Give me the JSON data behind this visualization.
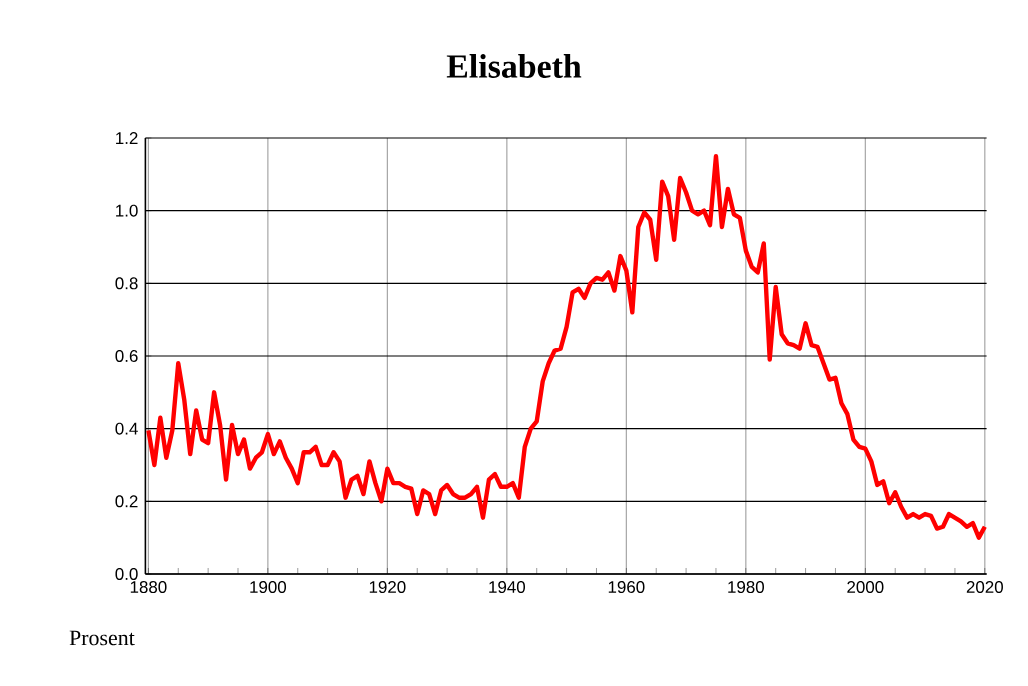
{
  "chart_data": {
    "type": "line",
    "title": "Elisabeth",
    "ylabel": "Prosent",
    "x": [
      1880,
      1881,
      1882,
      1883,
      1884,
      1885,
      1886,
      1887,
      1888,
      1889,
      1890,
      1891,
      1892,
      1893,
      1894,
      1895,
      1896,
      1897,
      1898,
      1899,
      1900,
      1901,
      1902,
      1903,
      1904,
      1905,
      1906,
      1907,
      1908,
      1909,
      1910,
      1911,
      1912,
      1913,
      1914,
      1915,
      1916,
      1917,
      1918,
      1919,
      1920,
      1921,
      1922,
      1923,
      1924,
      1925,
      1926,
      1927,
      1928,
      1929,
      1930,
      1931,
      1932,
      1933,
      1934,
      1935,
      1936,
      1937,
      1938,
      1939,
      1940,
      1941,
      1942,
      1943,
      1944,
      1945,
      1946,
      1947,
      1948,
      1949,
      1950,
      1951,
      1952,
      1953,
      1954,
      1955,
      1956,
      1957,
      1958,
      1959,
      1960,
      1961,
      1962,
      1963,
      1964,
      1965,
      1966,
      1967,
      1968,
      1969,
      1970,
      1971,
      1972,
      1973,
      1974,
      1975,
      1976,
      1977,
      1978,
      1979,
      1980,
      1981,
      1982,
      1983,
      1984,
      1985,
      1986,
      1987,
      1988,
      1989,
      1990,
      1991,
      1992,
      1993,
      1994,
      1995,
      1996,
      1997,
      1998,
      1999,
      2000,
      2001,
      2002,
      2003,
      2004,
      2005,
      2006,
      2007,
      2008,
      2009,
      2010,
      2011,
      2012,
      2013,
      2014,
      2015,
      2016,
      2017,
      2018,
      2019,
      2020
    ],
    "series": [
      {
        "color": "#ff0000",
        "values": [
          0.395,
          0.3,
          0.43,
          0.32,
          0.395,
          0.58,
          0.48,
          0.33,
          0.45,
          0.37,
          0.36,
          0.5,
          0.41,
          0.26,
          0.41,
          0.33,
          0.37,
          0.29,
          0.32,
          0.335,
          0.385,
          0.33,
          0.365,
          0.32,
          0.29,
          0.25,
          0.335,
          0.335,
          0.35,
          0.3,
          0.3,
          0.335,
          0.31,
          0.21,
          0.26,
          0.27,
          0.22,
          0.31,
          0.25,
          0.2,
          0.29,
          0.25,
          0.25,
          0.24,
          0.235,
          0.165,
          0.23,
          0.22,
          0.165,
          0.23,
          0.245,
          0.22,
          0.21,
          0.21,
          0.22,
          0.24,
          0.155,
          0.26,
          0.275,
          0.24,
          0.24,
          0.25,
          0.21,
          0.35,
          0.4,
          0.42,
          0.53,
          0.58,
          0.615,
          0.62,
          0.68,
          0.775,
          0.785,
          0.76,
          0.8,
          0.815,
          0.81,
          0.83,
          0.78,
          0.875,
          0.835,
          0.72,
          0.955,
          0.995,
          0.975,
          0.865,
          1.08,
          1.04,
          0.92,
          1.09,
          1.05,
          1.0,
          0.99,
          1.0,
          0.96,
          1.15,
          0.955,
          1.06,
          0.99,
          0.98,
          0.89,
          0.845,
          0.83,
          0.91,
          0.59,
          0.79,
          0.66,
          0.635,
          0.63,
          0.62,
          0.69,
          0.63,
          0.625,
          0.58,
          0.535,
          0.54,
          0.47,
          0.44,
          0.37,
          0.35,
          0.345,
          0.31,
          0.245,
          0.255,
          0.195,
          0.225,
          0.185,
          0.155,
          0.165,
          0.155,
          0.165,
          0.16,
          0.125,
          0.13,
          0.165,
          0.155,
          0.145,
          0.13,
          0.14,
          0.1,
          0.13
        ]
      }
    ],
    "xlim": [
      1879.5,
      2020.3
    ],
    "ylim": [
      0,
      1.2
    ],
    "xticks": [
      1880,
      1900,
      1920,
      1940,
      1960,
      1980,
      2000,
      2020
    ],
    "yticks": [
      {
        "value": 0,
        "label": "0.0"
      },
      {
        "value": 0.2,
        "label": "0.2"
      },
      {
        "value": 0.4,
        "label": "0.4"
      },
      {
        "value": 0.6,
        "label": "0.6"
      },
      {
        "value": 0.8,
        "label": "0.8"
      },
      {
        "value": 1,
        "label": "1.0"
      },
      {
        "value": 1.2,
        "label": "1.2"
      }
    ],
    "grid": true,
    "marker": "none",
    "line_style": "solid"
  }
}
